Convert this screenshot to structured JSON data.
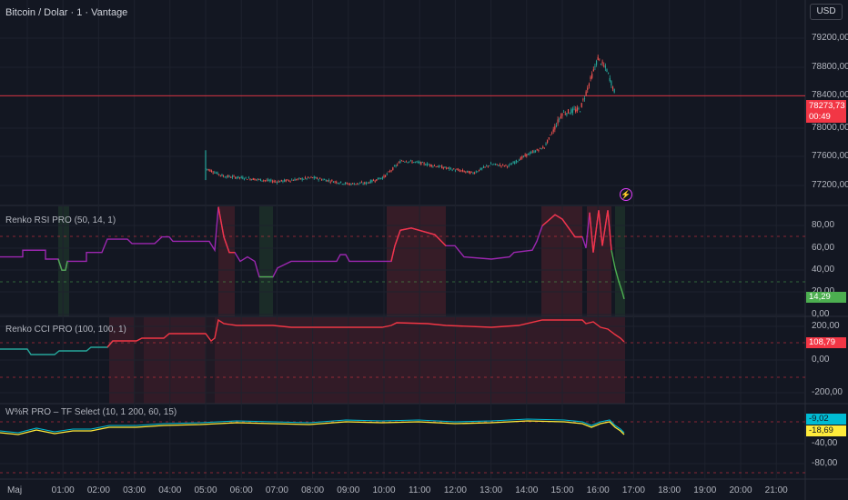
{
  "header": {
    "title": "Bitcoin / Dolar · 1 · Vantage",
    "currency_button": "USD"
  },
  "price_axis": {
    "ticks": [
      "79200,00",
      "78800,00",
      "78400,00",
      "78000,00",
      "77600,00",
      "77200,00"
    ],
    "last_price": "78273,73",
    "countdown": "00:49",
    "last_price_color": "#f23645"
  },
  "indicators": {
    "rsi": {
      "label": "Renko RSI PRO (50, 14, 1)",
      "ticks": [
        "80,00",
        "60,00",
        "40,00",
        "20,00",
        "0,00"
      ],
      "value": "14,29",
      "value_color": "#4caf50",
      "line_color": "#9c27b0"
    },
    "cci": {
      "label": "Renko CCI PRO (100, 100, 1)",
      "ticks": [
        "200,00",
        "0,00",
        "-200,00"
      ],
      "value": "108,79",
      "value_color": "#f23645",
      "line_color": "#f23645"
    },
    "wr": {
      "label": "W%R PRO – TF Select (10, 1 200, 60, 15)",
      "ticks": [
        "-40,00",
        "-80,00"
      ],
      "value_fast": "-9,02",
      "value_slow": "-18,69",
      "fast_color": "#00bcd4",
      "slow_color": "#ffeb3b"
    }
  },
  "time_axis": {
    "labels": [
      "Maj",
      "01:00",
      "02:00",
      "03:00",
      "04:00",
      "05:00",
      "06:00",
      "07:00",
      "08:00",
      "09:00",
      "10:00",
      "11:00",
      "12:00",
      "13:00",
      "14:00",
      "15:00",
      "16:00",
      "17:00",
      "18:00",
      "19:00",
      "20:00",
      "21:00"
    ]
  },
  "chart_data": {
    "type": "line",
    "x": [
      "05:00",
      "05:30",
      "06:00",
      "07:00",
      "08:00",
      "09:00",
      "09:30",
      "10:00",
      "10:30",
      "11:00",
      "12:00",
      "12:30",
      "13:00",
      "13:30",
      "14:00",
      "14:30",
      "15:00",
      "15:30",
      "16:00",
      "16:15",
      "16:30"
    ],
    "series": [
      {
        "values": [
          77350,
          77250,
          77230,
          77180,
          77230,
          77150,
          77160,
          77240,
          77450,
          77420,
          77330,
          77290,
          77400,
          77380,
          77520,
          77620,
          78050,
          78100,
          78750,
          78600,
          78274
        ]
      }
    ],
    "ylim": [
      76900,
      79400
    ]
  }
}
